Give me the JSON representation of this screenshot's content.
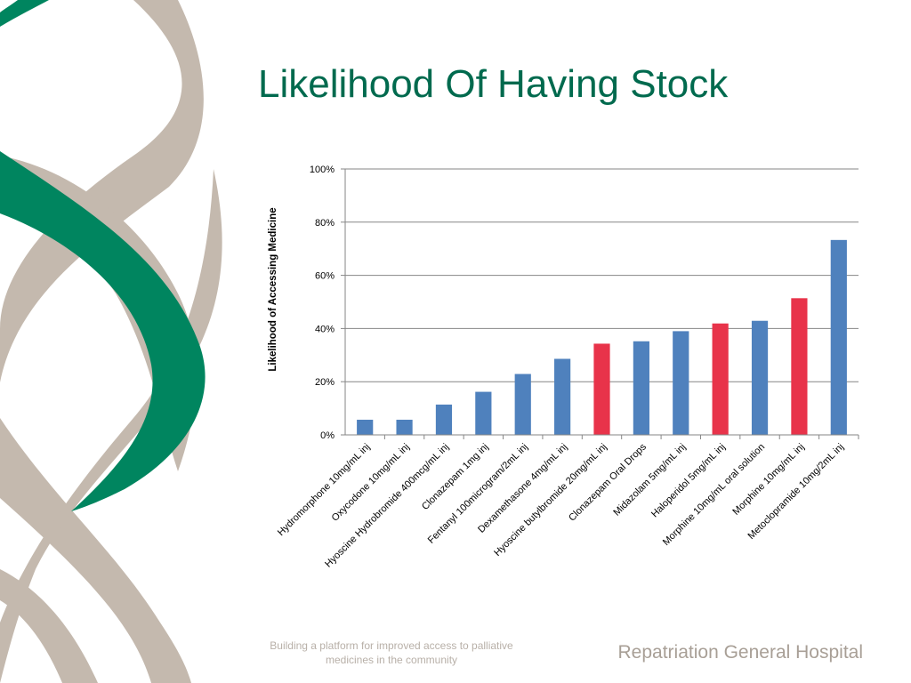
{
  "slide": {
    "title": "Likelihood Of Having Stock",
    "tagline": "Building a platform for improved access to palliative medicines in the community",
    "hospital": "Repatriation General Hospital"
  },
  "colors": {
    "title": "#006a4e",
    "green_ribbon": "#00855f",
    "grey_ribbon": "#c4b9ae",
    "bar_blue": "#4f81bd",
    "bar_red": "#e8334a",
    "tagline": "#b8b0a8",
    "hospital": "#a89f96",
    "gridline": "#868686"
  },
  "chart_data": {
    "type": "bar",
    "title": "",
    "xlabel": "",
    "ylabel": "Likelihood of Accessing Medicine",
    "ylim": [
      0,
      100
    ],
    "y_ticks": [
      "0%",
      "20%",
      "40%",
      "60%",
      "80%",
      "100%"
    ],
    "grid": true,
    "categories": [
      "Hydromorphone 10mg/mL inj",
      "Oxycodone 10mg/mL inj",
      "Hyoscine Hydrobromide 400mcg/mL inj",
      "Clonazepam 1mg inj",
      "Fentanyl 100microgram/2mL inj",
      "Dexamethasone 4mg/mL inj",
      "Hyoscine butylbromide 20mg/mL inj",
      "Clonazepam Oral Drops",
      "Midazolam 5mg/mL inj",
      "Haloperidol 5mg/mL inj",
      "Morphine 10mg/mL oral solution",
      "Morphine 10mg/mL inj",
      "Metoclopramide 10mg/2mL inj"
    ],
    "values": [
      5.7,
      5.7,
      11.4,
      16.2,
      22.9,
      28.6,
      34.3,
      35.2,
      39.0,
      41.9,
      42.9,
      51.4,
      73.3
    ],
    "bar_colors": [
      "blue",
      "blue",
      "blue",
      "blue",
      "blue",
      "blue",
      "red",
      "blue",
      "blue",
      "red",
      "blue",
      "red",
      "blue"
    ]
  }
}
